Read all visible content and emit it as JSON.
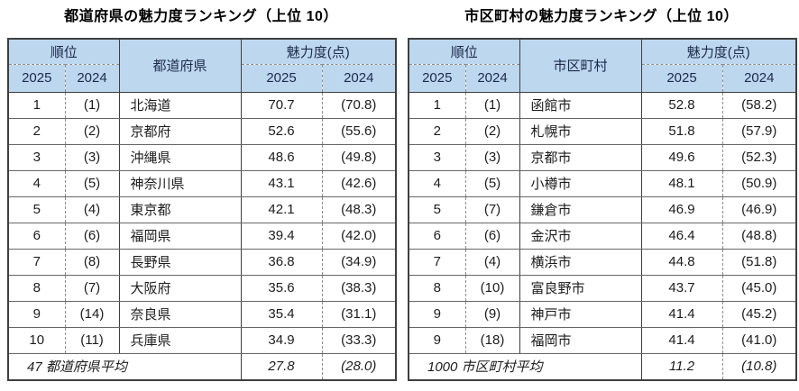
{
  "colors": {
    "header_bg": "#bdd7ee",
    "border_dark": "#3f3f3f",
    "border_dashed": "#8c8c8c",
    "text": "#1c1c1c"
  },
  "tables": [
    {
      "title": "都道府県の魅力度ランキング（上位 10）",
      "headers": {
        "rank_group": "順位",
        "entity": "都道府県",
        "score_group": "魅力度(点)",
        "year_current": "2025",
        "year_prev": "2024"
      },
      "rows": [
        {
          "rank_2025": "1",
          "rank_2024": "(1)",
          "name": "北海道",
          "score_2025": "70.7",
          "score_2024": "(70.8)"
        },
        {
          "rank_2025": "2",
          "rank_2024": "(2)",
          "name": "京都府",
          "score_2025": "52.6",
          "score_2024": "(55.6)"
        },
        {
          "rank_2025": "3",
          "rank_2024": "(3)",
          "name": "沖縄県",
          "score_2025": "48.6",
          "score_2024": "(49.8)"
        },
        {
          "rank_2025": "4",
          "rank_2024": "(5)",
          "name": "神奈川県",
          "score_2025": "43.1",
          "score_2024": "(42.6)"
        },
        {
          "rank_2025": "5",
          "rank_2024": "(4)",
          "name": "東京都",
          "score_2025": "42.1",
          "score_2024": "(48.3)"
        },
        {
          "rank_2025": "6",
          "rank_2024": "(6)",
          "name": "福岡県",
          "score_2025": "39.4",
          "score_2024": "(42.0)"
        },
        {
          "rank_2025": "7",
          "rank_2024": "(8)",
          "name": "長野県",
          "score_2025": "36.8",
          "score_2024": "(34.9)"
        },
        {
          "rank_2025": "8",
          "rank_2024": "(7)",
          "name": "大阪府",
          "score_2025": "35.6",
          "score_2024": "(38.3)"
        },
        {
          "rank_2025": "9",
          "rank_2024": "(14)",
          "name": "奈良県",
          "score_2025": "35.4",
          "score_2024": "(31.1)"
        },
        {
          "rank_2025": "10",
          "rank_2024": "(11)",
          "name": "兵庫県",
          "score_2025": "34.9",
          "score_2024": "(33.3)"
        }
      ],
      "footer": {
        "label": "47 都道府県平均",
        "score_2025": "27.8",
        "score_2024": "(28.0)"
      }
    },
    {
      "title": "市区町村の魅力度ランキング（上位 10）",
      "headers": {
        "rank_group": "順位",
        "entity": "市区町村",
        "score_group": "魅力度(点)",
        "year_current": "2025",
        "year_prev": "2024"
      },
      "rows": [
        {
          "rank_2025": "1",
          "rank_2024": "(1)",
          "name": "函館市",
          "score_2025": "52.8",
          "score_2024": "(58.2)"
        },
        {
          "rank_2025": "2",
          "rank_2024": "(2)",
          "name": "札幌市",
          "score_2025": "51.8",
          "score_2024": "(57.9)"
        },
        {
          "rank_2025": "3",
          "rank_2024": "(3)",
          "name": "京都市",
          "score_2025": "49.6",
          "score_2024": "(52.3)"
        },
        {
          "rank_2025": "4",
          "rank_2024": "(5)",
          "name": "小樽市",
          "score_2025": "48.1",
          "score_2024": "(50.9)"
        },
        {
          "rank_2025": "5",
          "rank_2024": "(7)",
          "name": "鎌倉市",
          "score_2025": "46.9",
          "score_2024": "(46.9)"
        },
        {
          "rank_2025": "6",
          "rank_2024": "(6)",
          "name": "金沢市",
          "score_2025": "46.4",
          "score_2024": "(48.8)"
        },
        {
          "rank_2025": "7",
          "rank_2024": "(4)",
          "name": "横浜市",
          "score_2025": "44.8",
          "score_2024": "(51.8)"
        },
        {
          "rank_2025": "8",
          "rank_2024": "(10)",
          "name": "富良野市",
          "score_2025": "43.7",
          "score_2024": "(45.0)"
        },
        {
          "rank_2025": "9",
          "rank_2024": "(9)",
          "name": "神戸市",
          "score_2025": "41.4",
          "score_2024": "(45.2)"
        },
        {
          "rank_2025": "9",
          "rank_2024": "(18)",
          "name": "福岡市",
          "score_2025": "41.4",
          "score_2024": "(41.0)"
        }
      ],
      "footer": {
        "label": "1000 市区町村平均",
        "score_2025": "11.2",
        "score_2024": "(10.8)"
      }
    }
  ]
}
